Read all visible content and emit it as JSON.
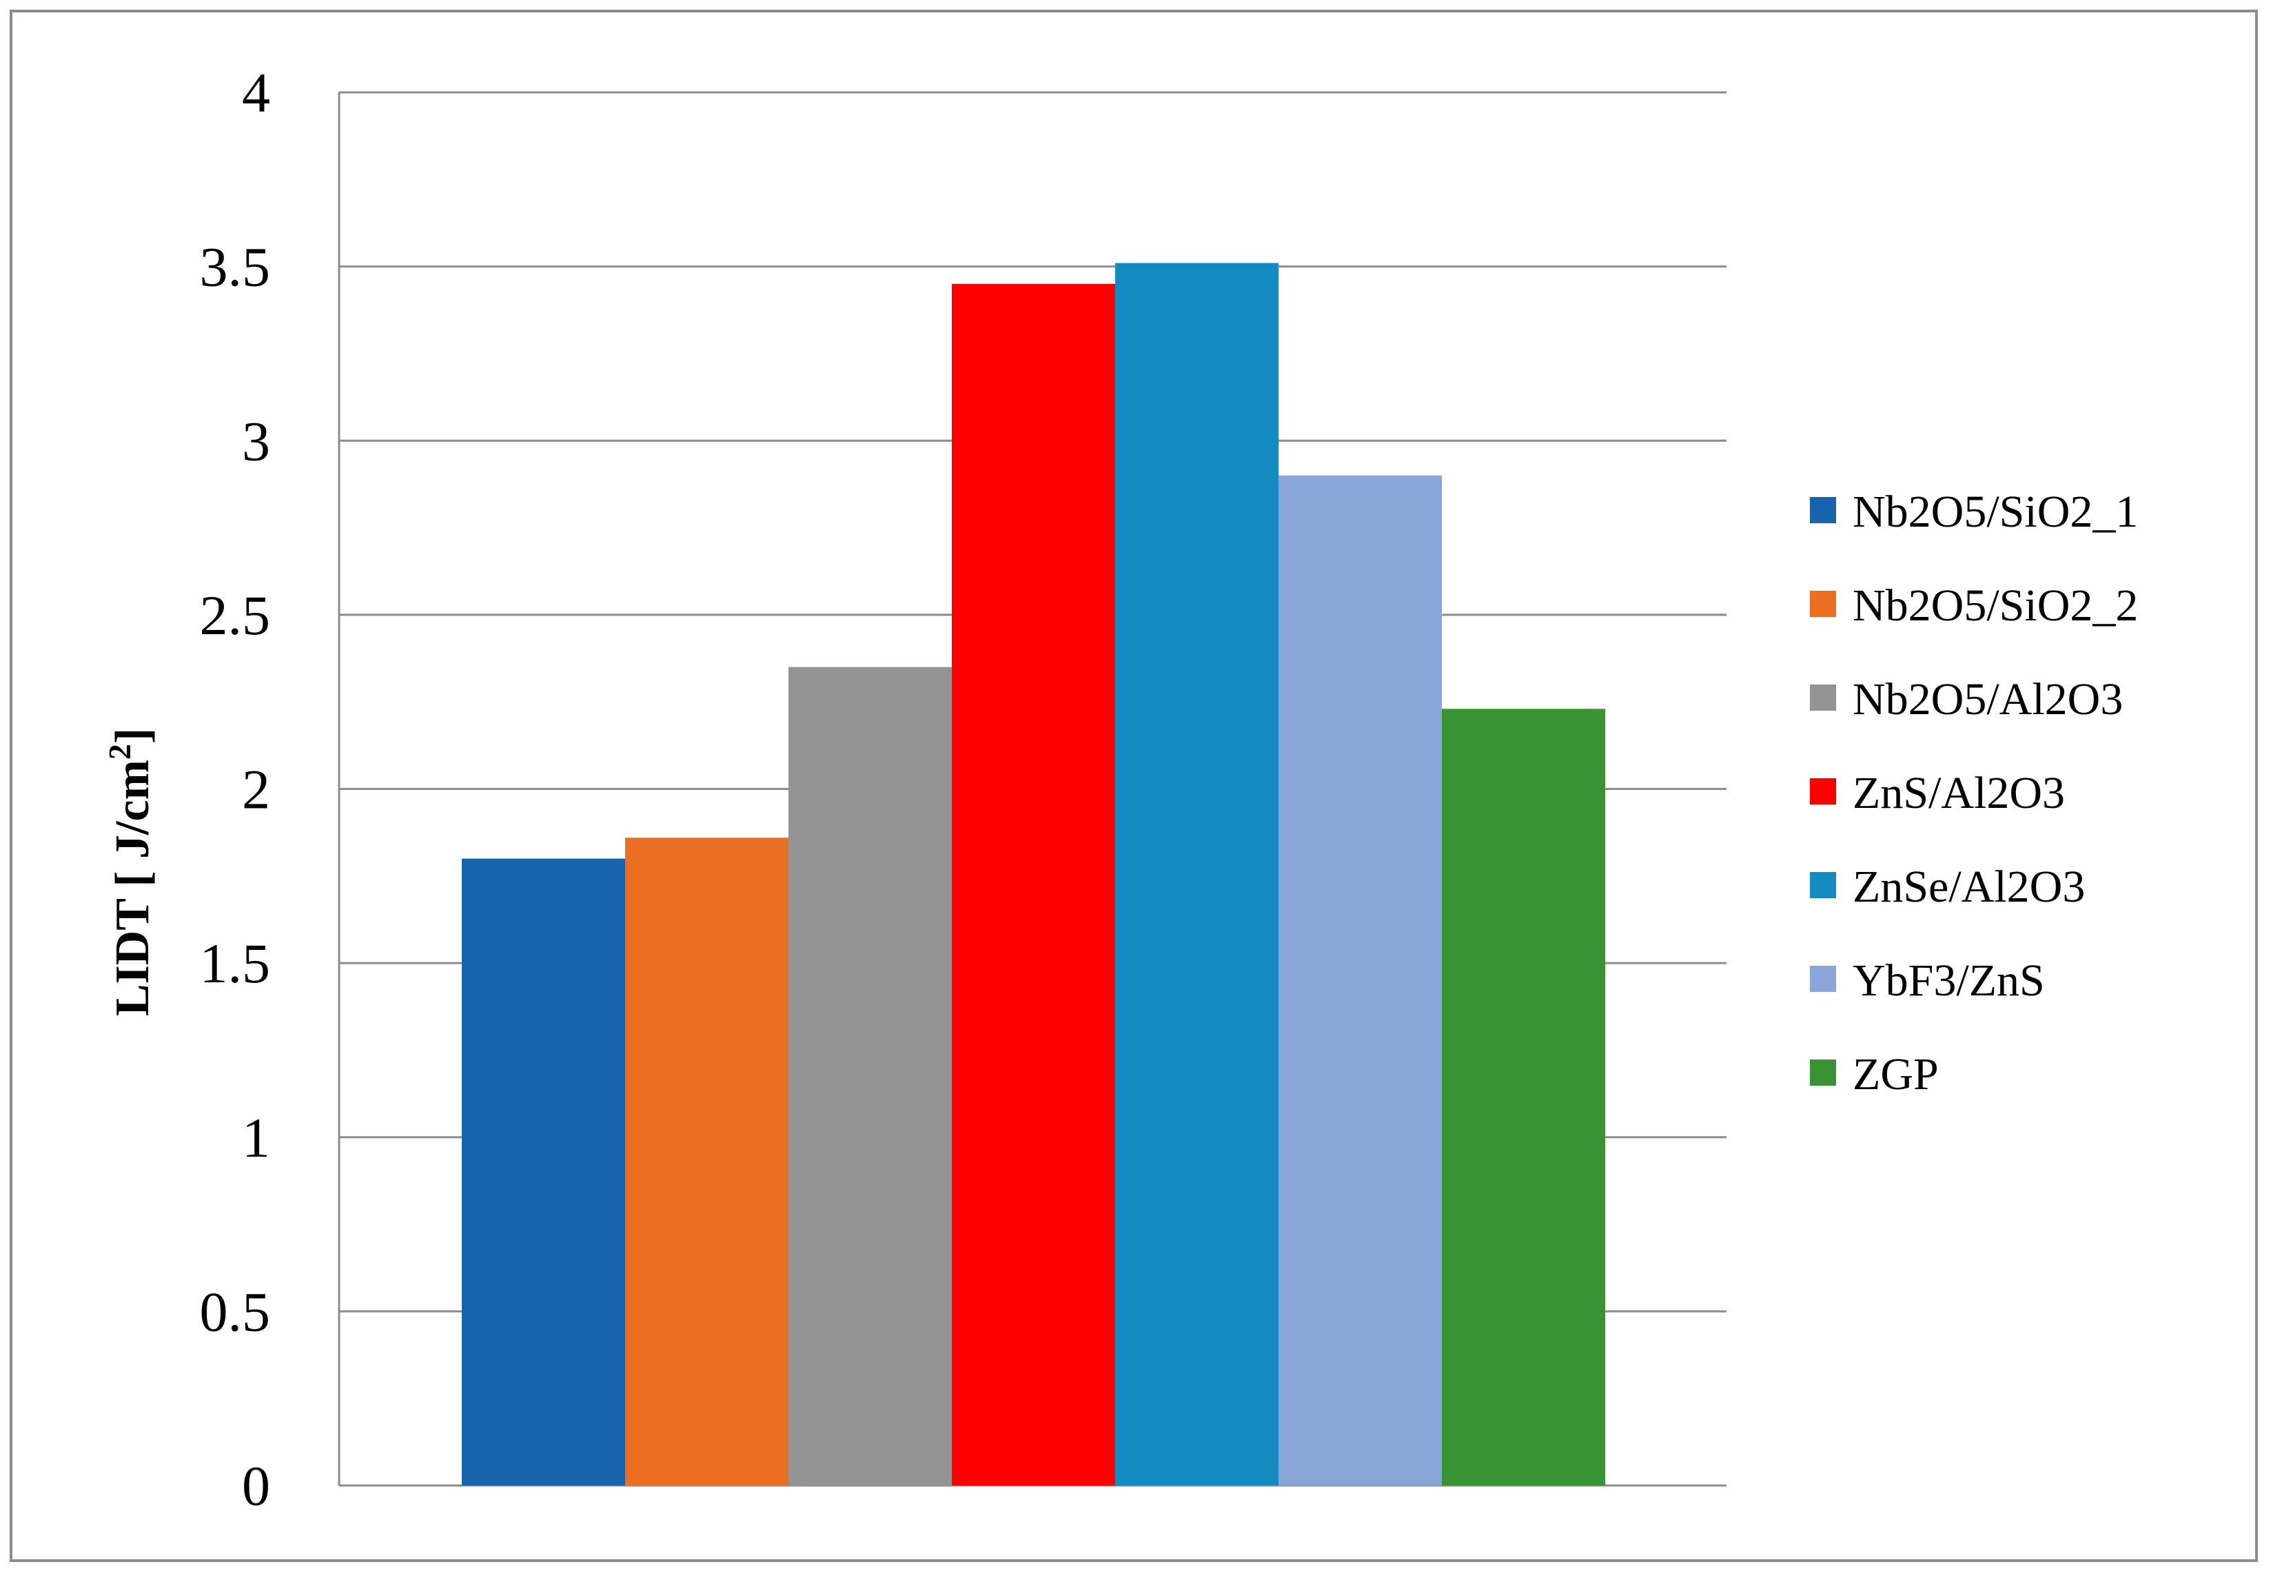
{
  "chart_data": {
    "type": "bar",
    "title": "",
    "xlabel": "",
    "ylabel": "LIDT [ J/cm",
    "ylabel_superscript": "2",
    "ylabel_suffix": "]",
    "ylim": [
      0,
      4
    ],
    "yticks": [
      "0",
      "0.5",
      "1",
      "1.5",
      "2",
      "2.5",
      "3",
      "3.5",
      "4"
    ],
    "grid": true,
    "legend_position": "right",
    "series": [
      {
        "name": "Nb2O5/SiO2_1",
        "values": [
          1.8
        ],
        "color": "#1763AE"
      },
      {
        "name": "Nb2O5/SiO2_2",
        "values": [
          1.86
        ],
        "color": "#EB6E21"
      },
      {
        "name": "Nb2O5/Al2O3",
        "values": [
          2.35
        ],
        "color": "#939393"
      },
      {
        "name": "ZnS/Al2O3",
        "values": [
          3.45
        ],
        "color": "#FF0000"
      },
      {
        "name": "ZnSe/Al2O3",
        "values": [
          3.51
        ],
        "color": "#138BC1"
      },
      {
        "name": "YbF3/ZnS",
        "values": [
          2.9
        ],
        "color": "#8AA5D8"
      },
      {
        "name": "ZGP",
        "values": [
          2.23
        ],
        "color": "#3A9333"
      }
    ]
  }
}
